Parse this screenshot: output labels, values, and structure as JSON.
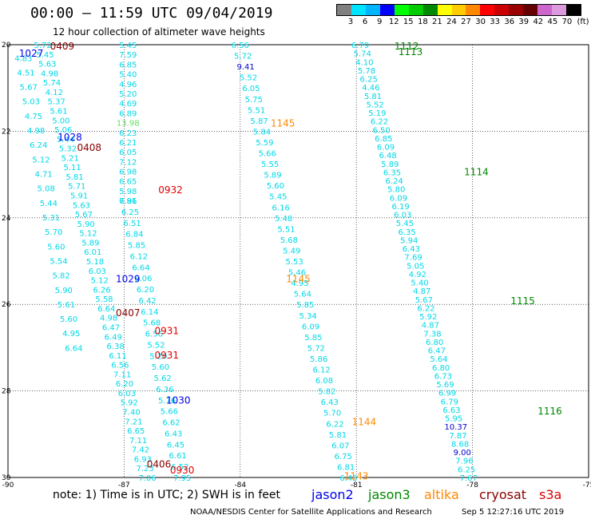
{
  "header": {
    "title": "00:00 – 11:59 UTC 09/04/2019",
    "subtitle": "12 hour collection of altimeter wave heights"
  },
  "legend": {
    "colors": [
      "#808080",
      "#00e5ff",
      "#00b4ff",
      "#0000ff",
      "#00ff00",
      "#00cc00",
      "#008800",
      "#ffff00",
      "#ffcc00",
      "#ff8800",
      "#ff0000",
      "#cc0000",
      "#990000",
      "#660000",
      "#cc66cc",
      "#dd99dd",
      "#000000"
    ],
    "labels": [
      "3",
      "6",
      "9",
      "12",
      "15",
      "18",
      "21",
      "24",
      "27",
      "30",
      "33",
      "36",
      "39",
      "42",
      "45",
      "70",
      "(ft)"
    ]
  },
  "chart_data": {
    "type": "scatter",
    "xlim": [
      -90,
      -75
    ],
    "ylim": [
      20,
      30
    ],
    "x_ticks": [
      "-90",
      "-87",
      "-84",
      "-81",
      "-78",
      "-75"
    ],
    "y_ticks": [
      "20",
      "22",
      "24",
      "26",
      "28",
      "30"
    ],
    "grid": true,
    "value_color": "#00d8e8",
    "tracks": [
      {
        "x0": -89.1,
        "y0": 20.0,
        "x1": -86.4,
        "y1": 30.0,
        "values": [
          "5.72",
          "5.45",
          "5.63",
          "4.98",
          "5.74",
          "4.12",
          "5.37",
          "5.61",
          "5.00",
          "5.06",
          "5.44",
          "5.32",
          "5.21",
          "5.11",
          "5.81",
          "5.71",
          "5.91",
          "5.63",
          "5.67",
          "5.90",
          "5.12",
          "5.89",
          "6.01",
          "5.18",
          "6.03",
          "5.12",
          "6.26",
          "5.58",
          "6.64",
          "4.98",
          "6.47",
          "6.49",
          "6.38",
          "6.11",
          "6.56",
          "7.11",
          "6.20",
          "6.03",
          "5.92",
          "7.40",
          "7.21",
          "6.65",
          "7.11",
          "7.42",
          "6.93",
          "7.23",
          "7.06"
        ]
      },
      {
        "x0": -89.6,
        "y0": 20.3,
        "x1": -88.3,
        "y1": 27.0,
        "values": [
          "4.83",
          "4.51",
          "5.67",
          "5.03",
          "4.75",
          "4.98",
          "6.24",
          "5.12",
          "4.71",
          "5.08",
          "5.44",
          "5.31",
          "5.70",
          "5.60",
          "5.54",
          "5.82",
          "5.90",
          "5.61",
          "5.60",
          "4.95",
          "6.64"
        ]
      },
      {
        "x0": -86.9,
        "y0": 20.0,
        "x1": -86.9,
        "y1": 23.6,
        "values": [
          "5.45",
          "7.59",
          "6.85",
          "5.40",
          "4.96",
          "5.20",
          "4.69",
          "6.89",
          "13.98",
          "6.23",
          "6.21",
          "6.05",
          "7.12",
          "6.98",
          "6.65",
          "5.98",
          "7.86"
        ]
      },
      {
        "x0": -86.9,
        "y0": 23.6,
        "x1": -85.5,
        "y1": 30.0,
        "values": [
          "6.91",
          "6.25",
          "6.51",
          "6.84",
          "5.85",
          "6.12",
          "6.64",
          "6.06",
          "6.20",
          "6.42",
          "6.14",
          "5.68",
          "6.56",
          "5.52",
          "5.20",
          "5.60",
          "5.62",
          "6.36",
          "5.76",
          "5.66",
          "6.62",
          "6.43",
          "6.45",
          "6.61",
          "6.52",
          "7.95"
        ]
      },
      {
        "x0": -84.0,
        "y0": 20.0,
        "x1": -81.2,
        "y1": 30.0,
        "values": [
          "6.56",
          "5.72",
          "9.41",
          "5.52",
          "6.05",
          "5.75",
          "5.51",
          "5.87",
          "5.84",
          "5.59",
          "5.66",
          "5.55",
          "5.89",
          "5.60",
          "5.45",
          "6.16",
          "5.48",
          "5.51",
          "5.68",
          "5.49",
          "5.53",
          "5.46",
          "4.95",
          "5.64",
          "5.85",
          "5.34",
          "6.09",
          "5.85",
          "5.72",
          "5.86",
          "6.12",
          "6.08",
          "5.82",
          "6.43",
          "5.70",
          "6.22",
          "5.81",
          "6.07",
          "6.75",
          "6.81",
          "6.43"
        ]
      },
      {
        "x0": -80.9,
        "y0": 20.0,
        "x1": -78.1,
        "y1": 30.0,
        "values": [
          "6.79",
          "5.74",
          "4.10",
          "5.78",
          "6.25",
          "4.46",
          "5.81",
          "5.52",
          "5.19",
          "6.22",
          "6.50",
          "6.85",
          "6.09",
          "6.48",
          "5.89",
          "6.35",
          "6.24",
          "5.80",
          "6.09",
          "6.19",
          "6.03",
          "5.45",
          "6.35",
          "5.94",
          "6.43",
          "7.69",
          "5.05",
          "4.92",
          "5.40",
          "4.87",
          "5.67",
          "6.22",
          "5.92",
          "4.87",
          "7.38",
          "6.80",
          "6.47",
          "5.64",
          "6.80",
          "6.73",
          "5.69",
          "6.99",
          "6.79",
          "6.63",
          "5.95",
          "10.37",
          "7.87",
          "8.68",
          "9.00",
          "7.96",
          "6.25",
          "7.67"
        ]
      }
    ],
    "time_labels": [
      {
        "text": "0409",
        "sat": "cryosat",
        "x": -88.6,
        "y": 20.02
      },
      {
        "text": "1027",
        "sat": "jason2",
        "x": -89.4,
        "y": 20.18
      },
      {
        "text": "1028",
        "sat": "jason2",
        "x": -88.4,
        "y": 22.12
      },
      {
        "text": "0408",
        "sat": "cryosat",
        "x": -87.9,
        "y": 22.36
      },
      {
        "text": "0932",
        "sat": "s3a",
        "x": -85.8,
        "y": 23.34
      },
      {
        "text": "1029",
        "sat": "jason2",
        "x": -86.9,
        "y": 25.4
      },
      {
        "text": "0407",
        "sat": "cryosat",
        "x": -86.9,
        "y": 26.18
      },
      {
        "text": "0931",
        "sat": "s3a",
        "x": -85.9,
        "y": 26.6
      },
      {
        "text": "0931",
        "sat": "s3a",
        "x": -85.9,
        "y": 27.16
      },
      {
        "text": "1030",
        "sat": "jason2",
        "x": -85.6,
        "y": 28.2
      },
      {
        "text": "0406",
        "sat": "cryosat",
        "x": -86.1,
        "y": 29.68
      },
      {
        "text": "0930",
        "sat": "s3a",
        "x": -85.5,
        "y": 29.82
      },
      {
        "text": "1145",
        "sat": "altika",
        "x": -82.9,
        "y": 21.8
      },
      {
        "text": "1145",
        "sat": "altika",
        "x": -82.5,
        "y": 25.4
      },
      {
        "text": "1144",
        "sat": "altika",
        "x": -80.8,
        "y": 28.7
      },
      {
        "text": "1143",
        "sat": "altika",
        "x": -81.0,
        "y": 29.95
      },
      {
        "text": "1112",
        "sat": "jason3",
        "x": -79.7,
        "y": 20.02
      },
      {
        "text": "1113",
        "sat": "jason3",
        "x": -79.6,
        "y": 20.15
      },
      {
        "text": "1114",
        "sat": "jason3",
        "x": -77.9,
        "y": 22.92
      },
      {
        "text": "1115",
        "sat": "jason3",
        "x": -76.7,
        "y": 25.9
      },
      {
        "text": "1116",
        "sat": "jason3",
        "x": -76.0,
        "y": 28.45
      }
    ]
  },
  "satellites": [
    {
      "id": "jason2",
      "name": "jason2",
      "color": "#0000ee"
    },
    {
      "id": "jason3",
      "name": "jason3",
      "color": "#008800"
    },
    {
      "id": "altika",
      "name": "altika",
      "color": "#ff8800"
    },
    {
      "id": "cryosat",
      "name": "cryosat",
      "color": "#880000"
    },
    {
      "id": "s3a",
      "name": "s3a",
      "color": "#dd0000"
    }
  ],
  "footer": {
    "note": "note: 1) Time is in UTC; 2) SWH is in feet",
    "credit": "NOAA/NESDIS Center for Satellite Applications and Research",
    "timestamp": "Sep  5 12:27:16 UTC 2019"
  }
}
